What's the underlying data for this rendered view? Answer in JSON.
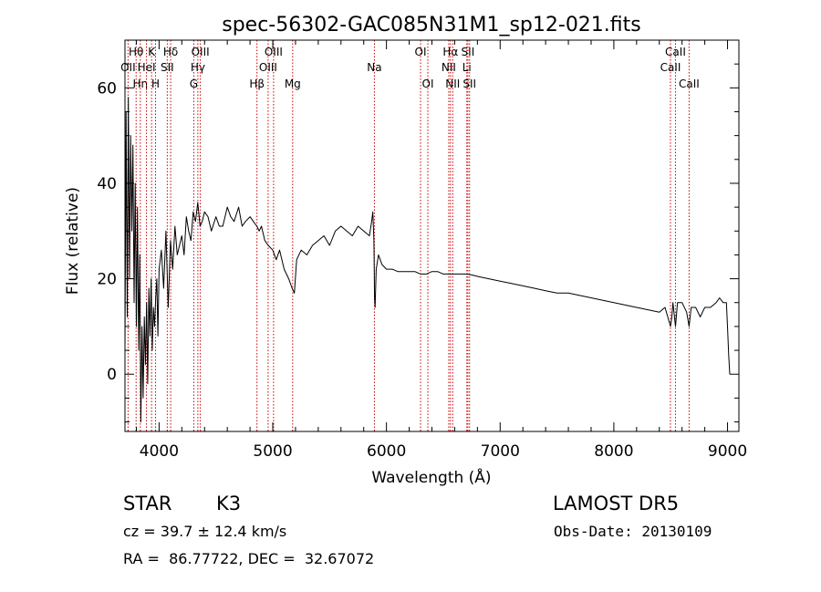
{
  "chart_data": {
    "type": "line",
    "title": "spec-56302-GAC085N31M1_sp12-021.fits",
    "xlabel": "Wavelength (Å)",
    "ylabel": "Flux (relative)",
    "xlim": [
      3700,
      9100
    ],
    "ylim": [
      -12,
      70
    ],
    "x_ticks": [
      4000,
      5000,
      6000,
      7000,
      8000,
      9000
    ],
    "y_ticks": [
      0,
      20,
      40,
      60
    ],
    "grid": false,
    "line_color": "#000000",
    "marker_color": "#cc0000",
    "series": [
      {
        "x": [
          3700,
          3710,
          3720,
          3730,
          3740,
          3750,
          3760,
          3770,
          3780,
          3790,
          3800,
          3810,
          3820,
          3830,
          3840,
          3850,
          3860,
          3870,
          3880,
          3890,
          3900,
          3910,
          3920,
          3930,
          3940,
          3950,
          3960,
          3970,
          3980,
          3990,
          4000,
          4020,
          4040,
          4060,
          4080,
          4100,
          4120,
          4140,
          4160,
          4180,
          4200,
          4220,
          4240,
          4260,
          4280,
          4300,
          4320,
          4340,
          4360,
          4380,
          4400,
          4430,
          4460,
          4500,
          4530,
          4560,
          4600,
          4630,
          4660,
          4700,
          4730,
          4760,
          4800,
          4830,
          4860,
          4880,
          4900,
          4930,
          4960,
          5000,
          5030,
          5060,
          5100,
          5140,
          5170,
          5190,
          5210,
          5250,
          5300,
          5350,
          5400,
          5450,
          5500,
          5550,
          5600,
          5650,
          5700,
          5750,
          5800,
          5850,
          5870,
          5880,
          5890,
          5895,
          5900,
          5910,
          5930,
          5960,
          6000,
          6050,
          6100,
          6150,
          6200,
          6250,
          6300,
          6350,
          6400,
          6450,
          6500,
          6550,
          6600,
          6650,
          6700,
          6750,
          6800,
          6900,
          7000,
          7100,
          7200,
          7300,
          7400,
          7500,
          7600,
          7700,
          7800,
          7900,
          8000,
          8100,
          8200,
          8300,
          8400,
          8450,
          8498,
          8510,
          8520,
          8542,
          8560,
          8600,
          8640,
          8662,
          8680,
          8720,
          8760,
          8800,
          8850,
          8900,
          8930,
          8960,
          8990,
          9000,
          9010,
          9020
        ],
        "y": [
          5,
          55,
          12,
          58,
          20,
          50,
          30,
          48,
          15,
          40,
          10,
          35,
          5,
          25,
          -10,
          10,
          -5,
          12,
          2,
          15,
          -2,
          18,
          8,
          20,
          5,
          14,
          10,
          16,
          20,
          8,
          22,
          26,
          18,
          30,
          14,
          28,
          22,
          31,
          25,
          27,
          29,
          25,
          33,
          30,
          28,
          34,
          32,
          36,
          31,
          32,
          34,
          33,
          30,
          33,
          31,
          31,
          35,
          33,
          32,
          35,
          31,
          32,
          33,
          32,
          31,
          30,
          31,
          28,
          27,
          26,
          24,
          26,
          22,
          20,
          18,
          17,
          24,
          26,
          25,
          27,
          28,
          29,
          27,
          30,
          31,
          30,
          29,
          31,
          30,
          29,
          32,
          34,
          28,
          16,
          14,
          22,
          25,
          23,
          22,
          22,
          21.5,
          21.5,
          21.5,
          21.5,
          21,
          21,
          21.5,
          21.5,
          21,
          21,
          21,
          21,
          21,
          20.8,
          20.5,
          20,
          19.5,
          19,
          18.5,
          18,
          17.5,
          17,
          17,
          16.5,
          16,
          15.5,
          15,
          14.5,
          14,
          13.5,
          13,
          14,
          10,
          12,
          15,
          10,
          15,
          15,
          13,
          10,
          14,
          14,
          12,
          14,
          14,
          15,
          16,
          15,
          15,
          10,
          4,
          0
        ]
      }
    ],
    "line_markers": [
      {
        "name": "OII",
        "wavelength": 3727,
        "row": 1
      },
      {
        "name": "Hθ",
        "wavelength": 3798,
        "row": 0
      },
      {
        "name": "Hη",
        "wavelength": 3835,
        "row": 2
      },
      {
        "name": "HeI",
        "wavelength": 3889,
        "row": 1
      },
      {
        "name": "K",
        "wavelength": 3934,
        "row": 0
      },
      {
        "name": "H",
        "wavelength": 3969,
        "row": 2
      },
      {
        "name": "SII",
        "wavelength": 4072,
        "row": 1
      },
      {
        "name": "Hδ",
        "wavelength": 4102,
        "row": 0
      },
      {
        "name": "G",
        "wavelength": 4305,
        "row": 2
      },
      {
        "name": "Hγ",
        "wavelength": 4341,
        "row": 1
      },
      {
        "name": "OIII",
        "wavelength": 4363,
        "row": 0
      },
      {
        "name": "Hβ",
        "wavelength": 4861,
        "row": 2
      },
      {
        "name": "OIII",
        "wavelength": 4959,
        "row": 1
      },
      {
        "name": "OIII",
        "wavelength": 5007,
        "row": 0
      },
      {
        "name": "Mg",
        "wavelength": 5175,
        "row": 2
      },
      {
        "name": "Na",
        "wavelength": 5894,
        "row": 1
      },
      {
        "name": "OI",
        "wavelength": 6300,
        "row": 0
      },
      {
        "name": "OI",
        "wavelength": 6364,
        "row": 2
      },
      {
        "name": "NII",
        "wavelength": 6548,
        "row": 1
      },
      {
        "name": "Hα",
        "wavelength": 6563,
        "row": 0
      },
      {
        "name": "NII",
        "wavelength": 6583,
        "row": 2
      },
      {
        "name": "Li",
        "wavelength": 6707,
        "row": 1
      },
      {
        "name": "SII",
        "wavelength": 6716,
        "row": 0
      },
      {
        "name": "SII",
        "wavelength": 6731,
        "row": 2
      },
      {
        "name": "CaII",
        "wavelength": 8498,
        "row": 1
      },
      {
        "name": "CaII",
        "wavelength": 8542,
        "row": 0
      },
      {
        "name": "CaII",
        "wavelength": 8662,
        "row": 2
      }
    ]
  },
  "info": {
    "class_label": "STAR",
    "subclass": "K3",
    "survey": "LAMOST DR5",
    "cz": "cz = 39.7 ± 12.4 km/s",
    "obs_date": "Obs-Date: 20130109",
    "radec": "RA =  86.77722, DEC =  32.67072"
  }
}
